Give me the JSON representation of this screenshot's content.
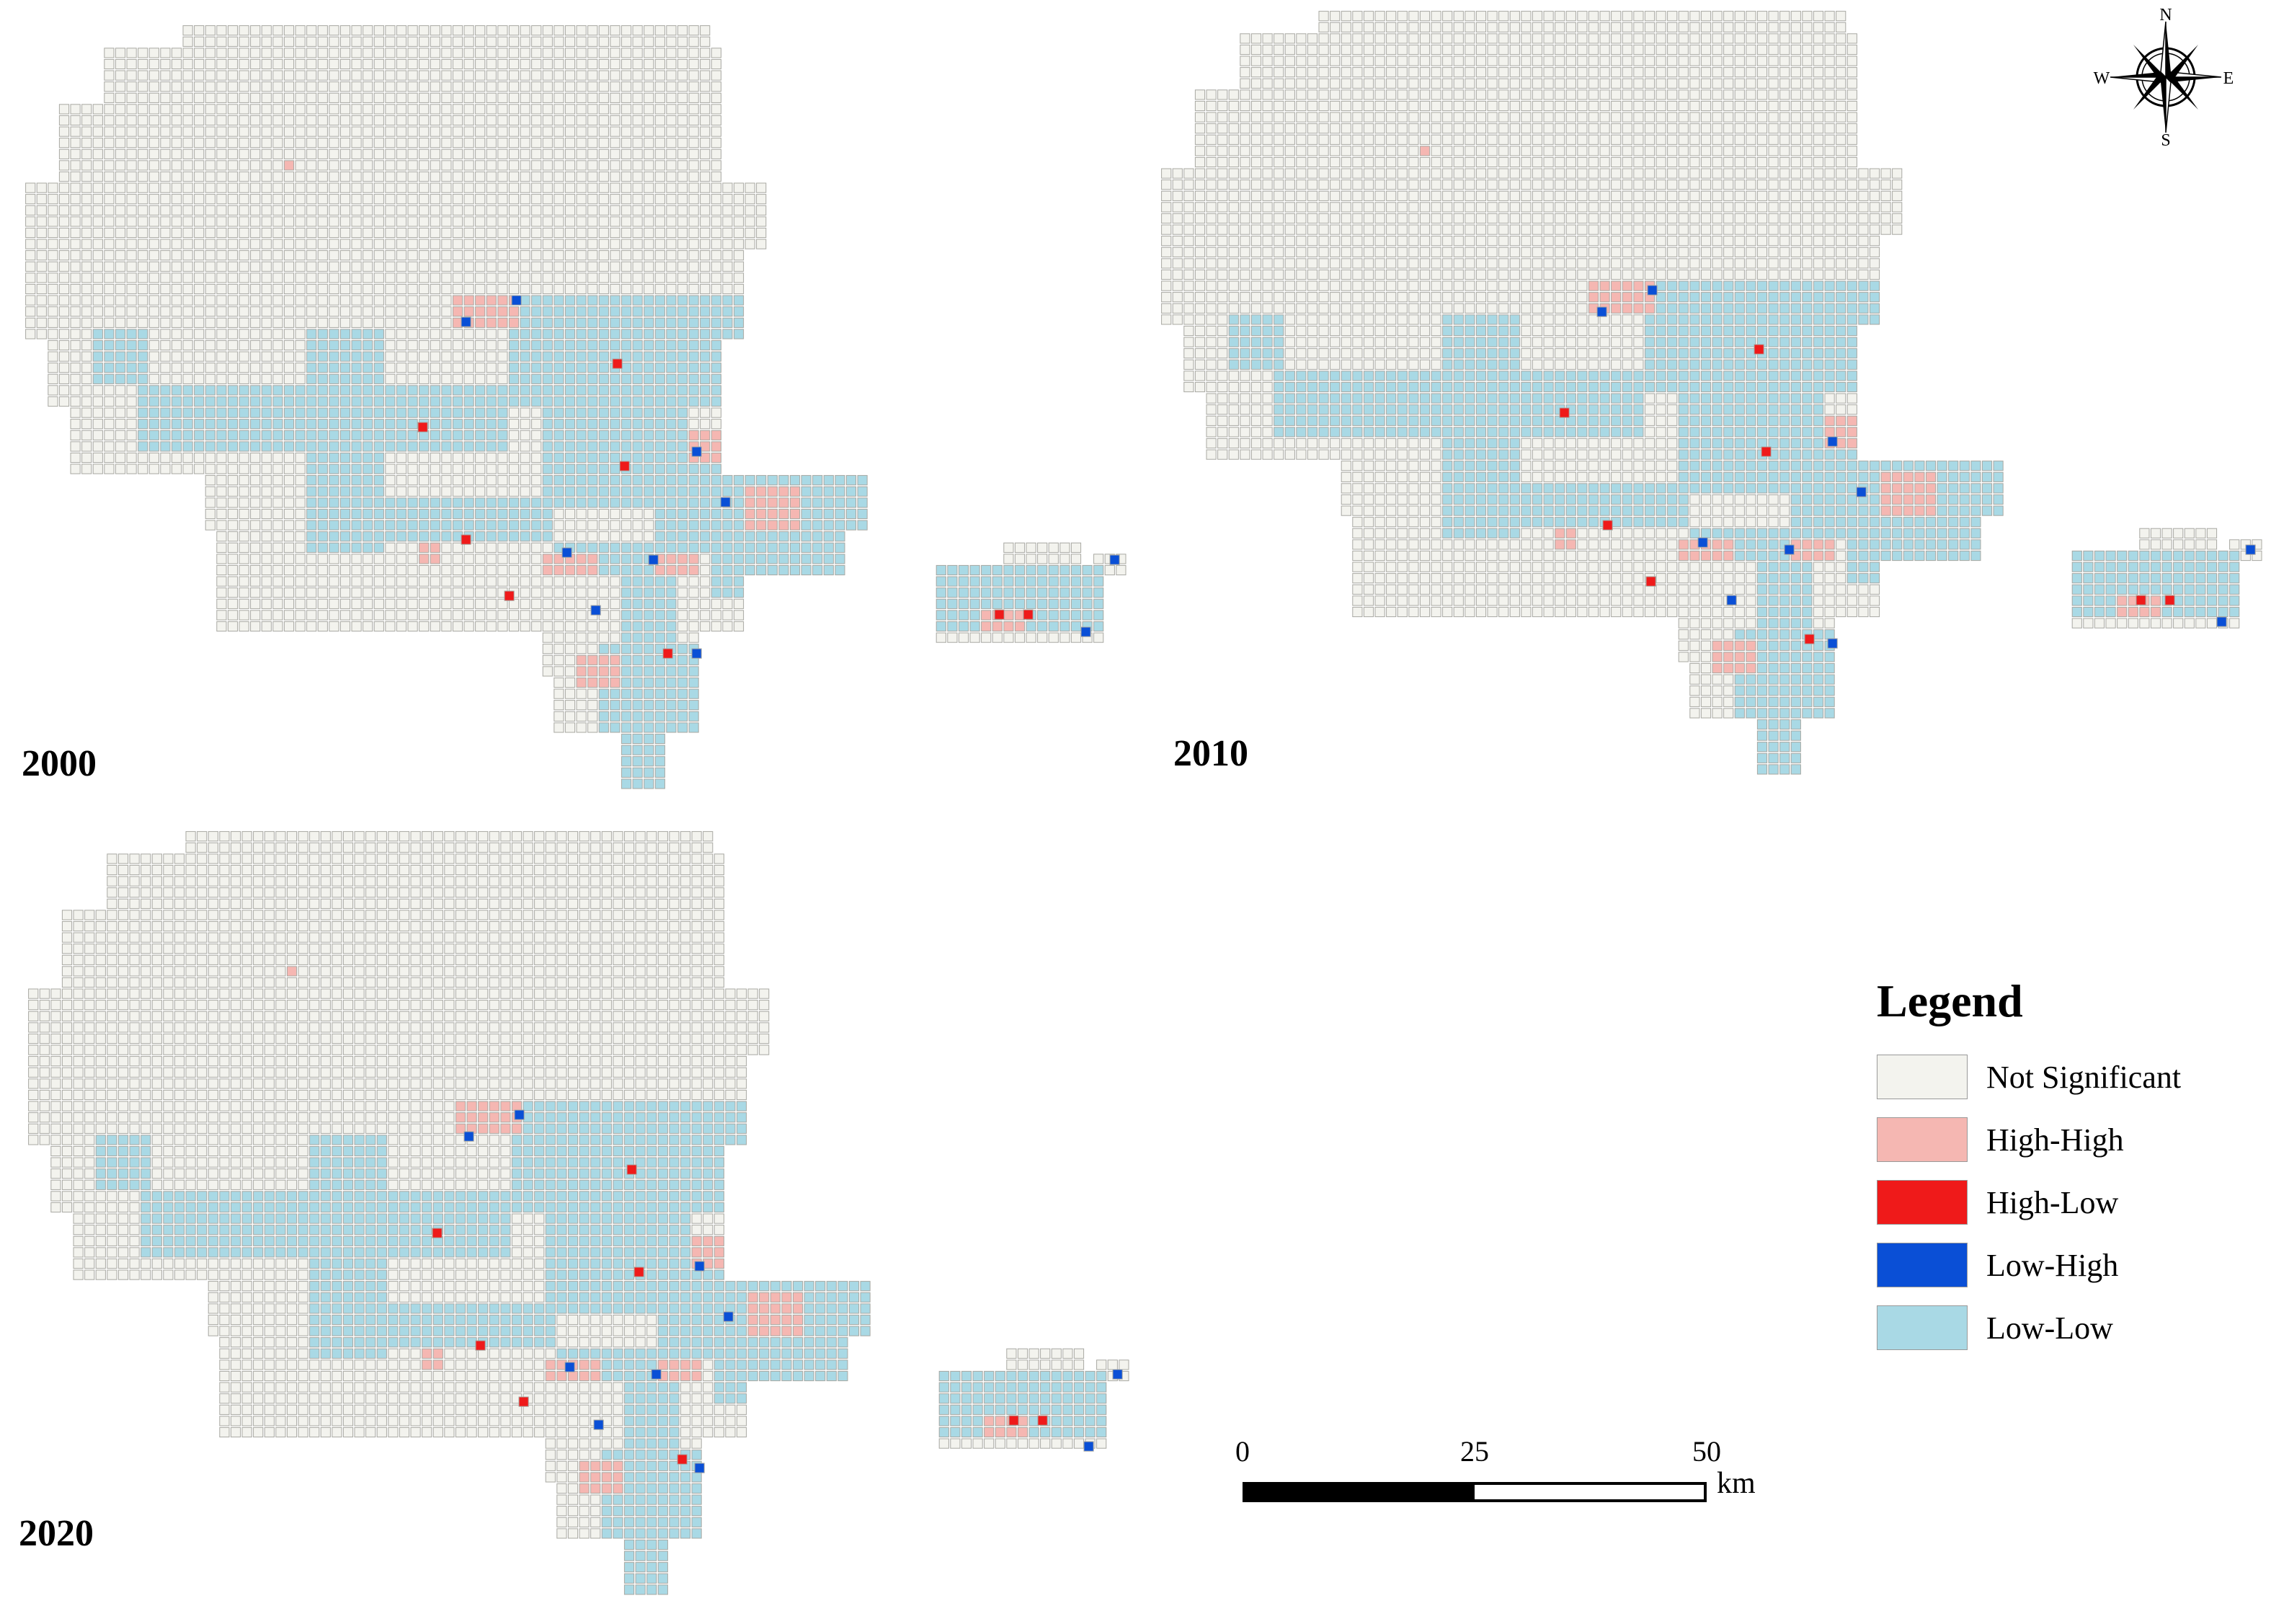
{
  "panels": [
    {
      "year": "2000",
      "shift": "p2000"
    },
    {
      "year": "2010",
      "shift": "p2010"
    },
    {
      "year": "2020",
      "shift": "p2020"
    }
  ],
  "legend": {
    "title": "Legend",
    "items": [
      {
        "label": "Not Significant",
        "color": "#f3f3ee"
      },
      {
        "label": "High-High",
        "color": "#f5b7b2"
      },
      {
        "label": "High-Low",
        "color": "#ef1a1a"
      },
      {
        "label": "Low-High",
        "color": "#0a4fd6"
      },
      {
        "label": "Low-Low",
        "color": "#a9d9e5"
      }
    ]
  },
  "scalebar": {
    "ticks": [
      "0",
      "25",
      "50"
    ],
    "unit": "km"
  },
  "compass": {
    "n": "N",
    "s": "S",
    "e": "E",
    "w": "W"
  }
}
